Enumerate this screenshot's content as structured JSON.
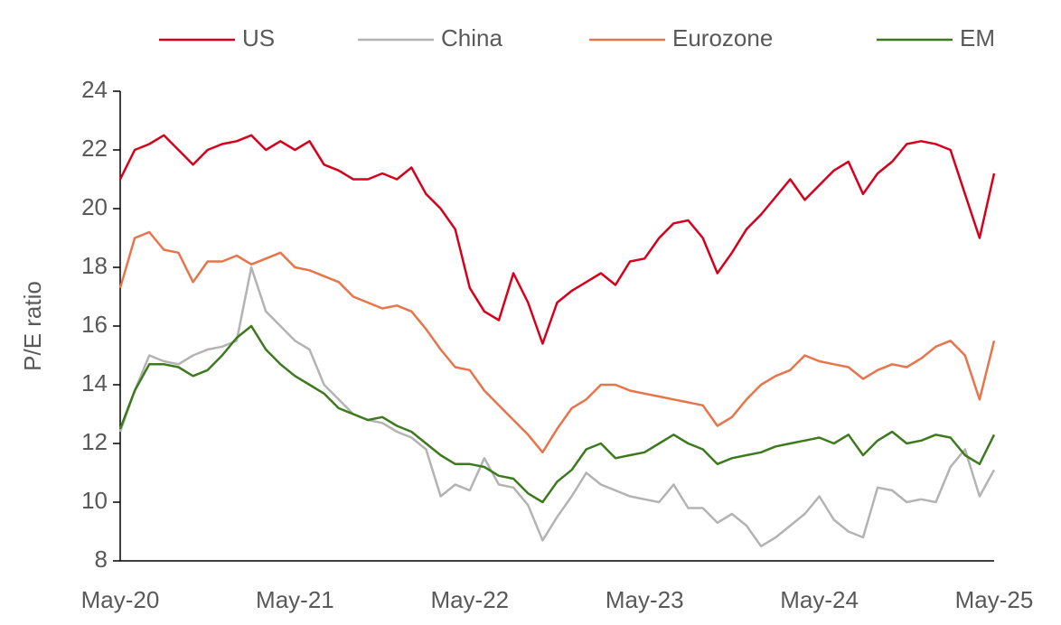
{
  "chart_data": {
    "type": "line",
    "y_label": "P/E ratio",
    "categories": [
      "May-20",
      null,
      null,
      null,
      null,
      null,
      null,
      null,
      null,
      null,
      null,
      null,
      "May-21",
      null,
      null,
      null,
      null,
      null,
      null,
      null,
      null,
      null,
      null,
      null,
      "May-22",
      null,
      null,
      null,
      null,
      null,
      null,
      null,
      null,
      null,
      null,
      null,
      "May-23",
      null,
      null,
      null,
      null,
      null,
      null,
      null,
      null,
      null,
      null,
      null,
      "May-24",
      null,
      null,
      null,
      null,
      null,
      null,
      null,
      null,
      null,
      null,
      null,
      "May-25"
    ],
    "series": [
      {
        "name": "US",
        "color": "#d7001c",
        "values": [
          21,
          22,
          22.2,
          22.5,
          22,
          21.5,
          22,
          22.2,
          22.3,
          22.5,
          22,
          22.3,
          22,
          22.3,
          21.5,
          21.3,
          21,
          21,
          21.2,
          21,
          21.4,
          20.5,
          20,
          19.3,
          17.3,
          16.5,
          16.2,
          17.8,
          16.8,
          15.4,
          16.8,
          17.2,
          17.5,
          17.8,
          17.4,
          18.2,
          18.3,
          19,
          19.5,
          19.6,
          19,
          17.8,
          18.5,
          19.3,
          19.8,
          20.4,
          21,
          20.3,
          20.8,
          21.3,
          21.6,
          20.5,
          21.2,
          21.6,
          22.2,
          22.3,
          22.2,
          22,
          20.5,
          19,
          21.2
        ]
      },
      {
        "name": "China",
        "color": "#b3b3b3",
        "values": [
          12.4,
          13.8,
          15,
          14.8,
          14.7,
          15,
          15.2,
          15.3,
          15.5,
          18,
          16.5,
          16,
          15.5,
          15.2,
          14,
          13.5,
          13,
          12.8,
          12.7,
          12.4,
          12.2,
          11.8,
          10.2,
          10.6,
          10.4,
          11.5,
          10.6,
          10.5,
          9.9,
          8.7,
          9.5,
          10.2,
          11,
          10.6,
          10.4,
          10.2,
          10.1,
          10,
          10.6,
          9.8,
          9.8,
          9.3,
          9.6,
          9.2,
          8.5,
          8.8,
          9.2,
          9.6,
          10.2,
          9.4,
          9,
          8.8,
          10.5,
          10.4,
          10,
          10.1,
          10,
          11.2,
          11.8,
          10.2,
          11.1
        ]
      },
      {
        "name": "Eurozone",
        "color": "#e8744a",
        "values": [
          17.3,
          19,
          19.2,
          18.6,
          18.5,
          17.5,
          18.2,
          18.2,
          18.4,
          18.1,
          18.3,
          18.5,
          18,
          17.9,
          17.7,
          17.5,
          17,
          16.8,
          16.6,
          16.7,
          16.5,
          15.9,
          15.2,
          14.6,
          14.5,
          13.8,
          13.3,
          12.8,
          12.3,
          11.7,
          12.5,
          13.2,
          13.5,
          14,
          14,
          13.8,
          13.7,
          13.6,
          13.5,
          13.4,
          13.3,
          12.6,
          12.9,
          13.5,
          14,
          14.3,
          14.5,
          15,
          14.8,
          14.7,
          14.6,
          14.2,
          14.5,
          14.7,
          14.6,
          14.9,
          15.3,
          15.5,
          15,
          13.5,
          15.5
        ]
      },
      {
        "name": "EM",
        "color": "#3d7a1e",
        "values": [
          12.5,
          13.8,
          14.7,
          14.7,
          14.6,
          14.3,
          14.5,
          15,
          15.6,
          16,
          15.2,
          14.7,
          14.3,
          14,
          13.7,
          13.2,
          13,
          12.8,
          12.9,
          12.6,
          12.4,
          12,
          11.6,
          11.3,
          11.3,
          11.2,
          10.9,
          10.8,
          10.3,
          10,
          10.7,
          11.1,
          11.8,
          12,
          11.5,
          11.6,
          11.7,
          12,
          12.3,
          12,
          11.8,
          11.3,
          11.5,
          11.6,
          11.7,
          11.9,
          12,
          12.1,
          12.2,
          12,
          12.3,
          11.6,
          12.1,
          12.4,
          12,
          12.1,
          12.3,
          12.2,
          11.6,
          11.3,
          12.3
        ]
      }
    ],
    "ylim": [
      8,
      24
    ],
    "yticks": [
      8,
      10,
      12,
      14,
      16,
      18,
      20,
      22,
      24
    ],
    "grid": false,
    "legend": "top"
  }
}
